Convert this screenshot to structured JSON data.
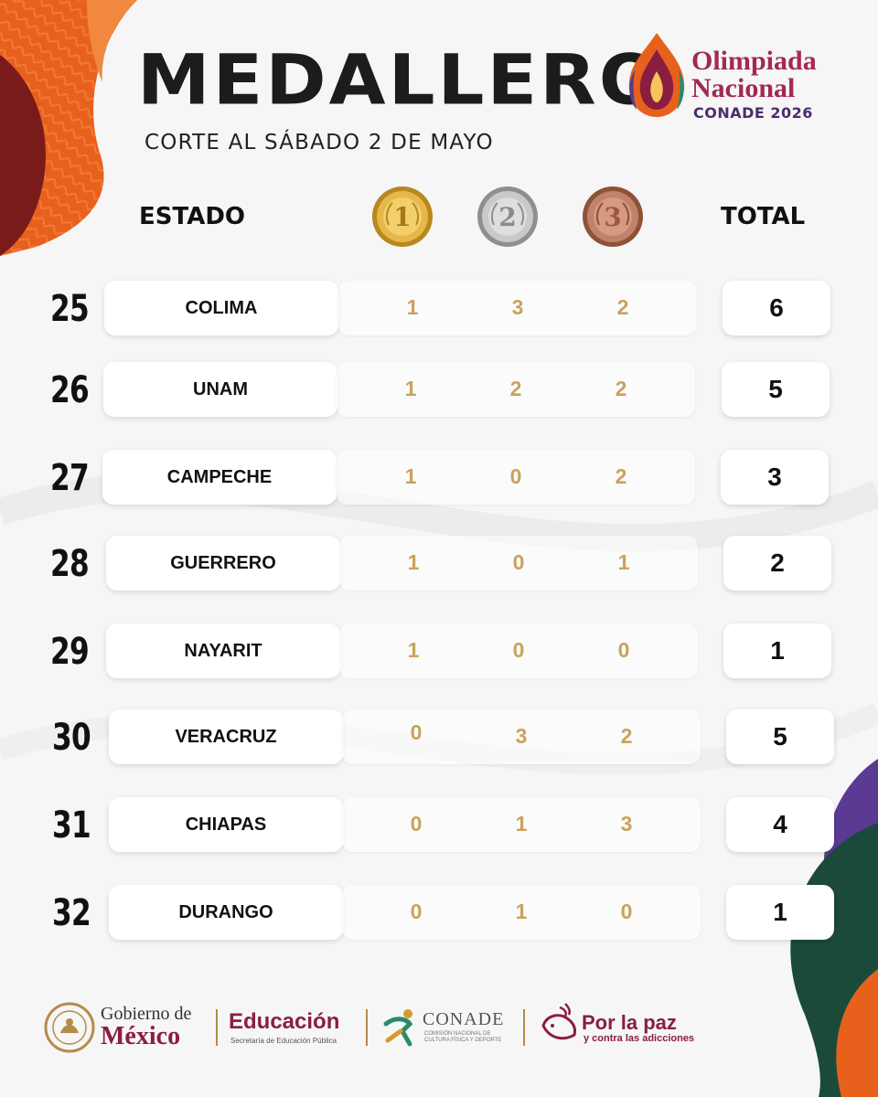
{
  "header": {
    "title": "MEDALLERO",
    "subtitle": "CORTE AL SÁBADO 2 DE MAYO"
  },
  "logo": {
    "line1": "Olimpiada",
    "line2": "Nacional",
    "line3": "CONADE 2026"
  },
  "columns": {
    "estado": "ESTADO",
    "gold": "1",
    "silver": "2",
    "bronze": "3",
    "total": "TOTAL"
  },
  "colors": {
    "number_gold": "#c9a35c",
    "brand_maroon": "#8a1e41",
    "orange": "#e8611c",
    "dark_red": "#7a1b1b",
    "purple": "#5a3a92",
    "green": "#1b4a3a"
  },
  "rows": [
    {
      "rank": "25",
      "estado": "COLIMA",
      "gold": "1",
      "silver": "3",
      "bronze": "2",
      "total": "6"
    },
    {
      "rank": "26",
      "estado": "UNAM",
      "gold": "1",
      "silver": "2",
      "bronze": "2",
      "total": "5"
    },
    {
      "rank": "27",
      "estado": "CAMPECHE",
      "gold": "1",
      "silver": "0",
      "bronze": "2",
      "total": "3"
    },
    {
      "rank": "28",
      "estado": "GUERRERO",
      "gold": "1",
      "silver": "0",
      "bronze": "1",
      "total": "2"
    },
    {
      "rank": "29",
      "estado": "NAYARIT",
      "gold": "1",
      "silver": "0",
      "bronze": "0",
      "total": "1"
    },
    {
      "rank": "30",
      "estado": "VERACRUZ",
      "gold": "0",
      "silver": "3",
      "bronze": "2",
      "total": "5"
    },
    {
      "rank": "31",
      "estado": "CHIAPAS",
      "gold": "0",
      "silver": "1",
      "bronze": "3",
      "total": "4"
    },
    {
      "rank": "32",
      "estado": "DURANGO",
      "gold": "0",
      "silver": "1",
      "bronze": "0",
      "total": "1"
    }
  ],
  "footer": {
    "gobierno_line1": "Gobierno de",
    "gobierno_line2": "México",
    "educacion_line1": "Educación",
    "educacion_line2": "Secretaría de Educación Pública",
    "conade_line1": "CONADE",
    "conade_line2": "COMISIÓN NACIONAL DE CULTURA FÍSICA Y DEPORTE",
    "paz_line1": "Por la paz",
    "paz_line2": "y contra las adicciones"
  }
}
